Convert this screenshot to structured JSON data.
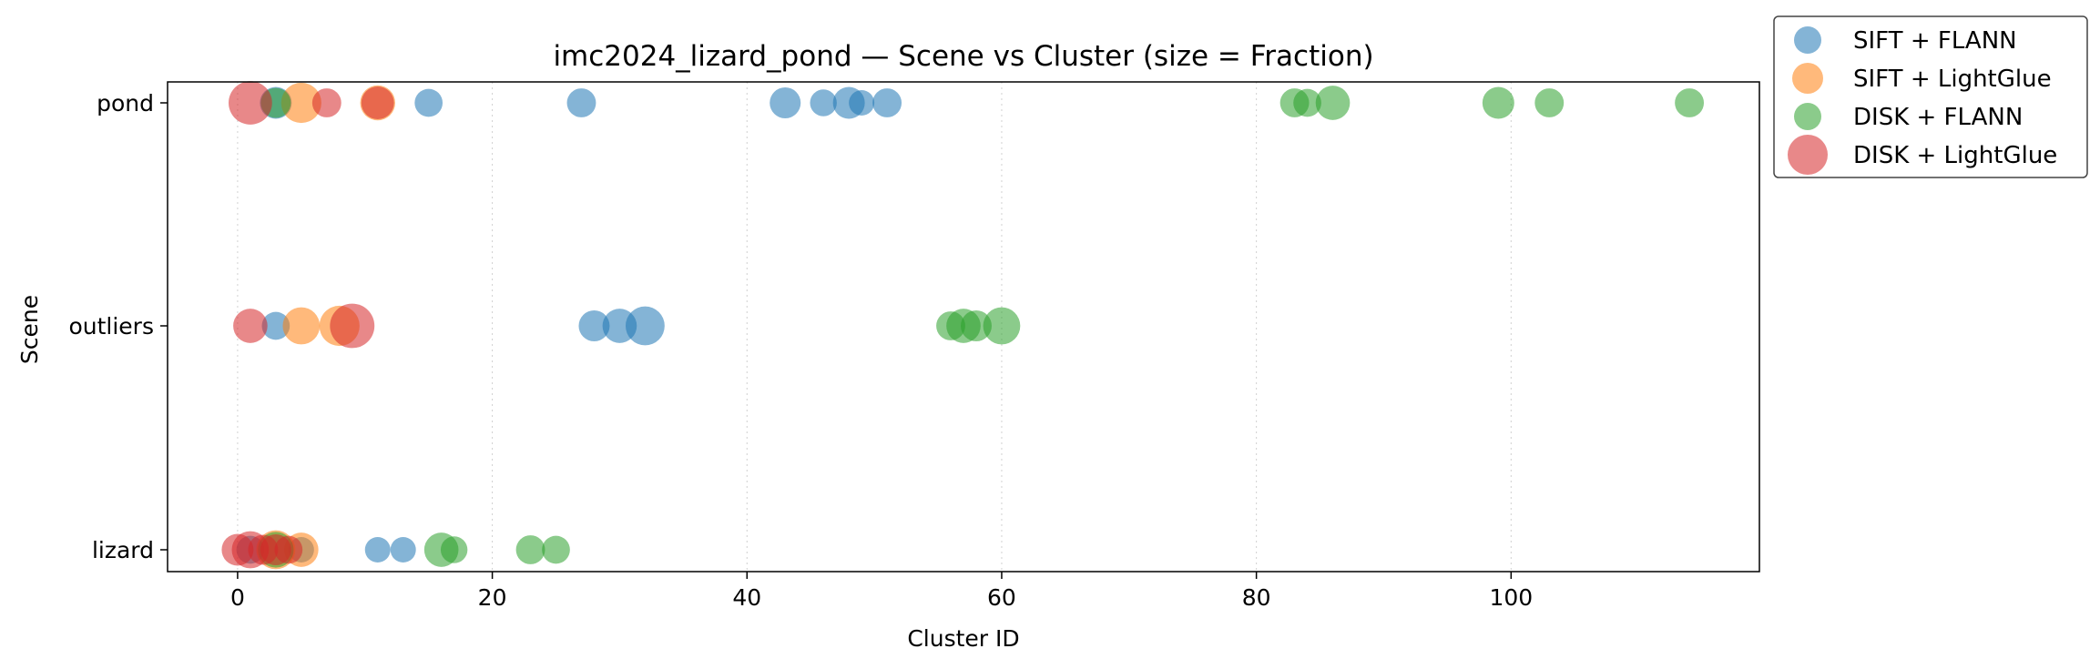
{
  "chart_data": {
    "type": "scatter",
    "title": "imc2024_lizard_pond — Scene vs Cluster (size = Fraction)",
    "xlabel": "Cluster ID",
    "ylabel": "Scene",
    "xlim": [
      -5.5,
      119.5
    ],
    "xticks": [
      0,
      20,
      40,
      60,
      80,
      100
    ],
    "y_categories": [
      "lizard",
      "outliers",
      "pond"
    ],
    "grid": "vertical dotted",
    "legend_position": "outside top-right",
    "series": [
      {
        "name": "SIFT + FLANN",
        "color": "#1f77b4",
        "points": [
          {
            "x": 3,
            "y": "pond",
            "fraction": 0.1
          },
          {
            "x": 15,
            "y": "pond",
            "fraction": 0.06
          },
          {
            "x": 27,
            "y": "pond",
            "fraction": 0.07
          },
          {
            "x": 43,
            "y": "pond",
            "fraction": 0.09
          },
          {
            "x": 46,
            "y": "pond",
            "fraction": 0.05
          },
          {
            "x": 48,
            "y": "pond",
            "fraction": 0.1
          },
          {
            "x": 49,
            "y": "pond",
            "fraction": 0.04
          },
          {
            "x": 51,
            "y": "pond",
            "fraction": 0.07
          },
          {
            "x": 3,
            "y": "outliers",
            "fraction": 0.06
          },
          {
            "x": 28,
            "y": "outliers",
            "fraction": 0.09
          },
          {
            "x": 30,
            "y": "outliers",
            "fraction": 0.13
          },
          {
            "x": 32,
            "y": "outliers",
            "fraction": 0.2
          },
          {
            "x": 1,
            "y": "lizard",
            "fraction": 0.06
          },
          {
            "x": 5,
            "y": "lizard",
            "fraction": 0.04
          },
          {
            "x": 11,
            "y": "lizard",
            "fraction": 0.04
          },
          {
            "x": 13,
            "y": "lizard",
            "fraction": 0.04
          }
        ]
      },
      {
        "name": "SIFT + LightGlue",
        "color": "#ff7f0e",
        "points": [
          {
            "x": 5,
            "y": "pond",
            "fraction": 0.22
          },
          {
            "x": 11,
            "y": "pond",
            "fraction": 0.14
          },
          {
            "x": 5,
            "y": "outliers",
            "fraction": 0.17
          },
          {
            "x": 8,
            "y": "outliers",
            "fraction": 0.22
          },
          {
            "x": 3,
            "y": "lizard",
            "fraction": 0.2
          },
          {
            "x": 5,
            "y": "lizard",
            "fraction": 0.13
          }
        ]
      },
      {
        "name": "DISK + FLANN",
        "color": "#2ca02c",
        "points": [
          {
            "x": 3,
            "y": "pond",
            "fraction": 0.08
          },
          {
            "x": 83,
            "y": "pond",
            "fraction": 0.07
          },
          {
            "x": 84,
            "y": "pond",
            "fraction": 0.06
          },
          {
            "x": 86,
            "y": "pond",
            "fraction": 0.13
          },
          {
            "x": 99,
            "y": "pond",
            "fraction": 0.1
          },
          {
            "x": 103,
            "y": "pond",
            "fraction": 0.07
          },
          {
            "x": 114,
            "y": "pond",
            "fraction": 0.07
          },
          {
            "x": 56,
            "y": "outliers",
            "fraction": 0.07
          },
          {
            "x": 57,
            "y": "outliers",
            "fraction": 0.13
          },
          {
            "x": 58,
            "y": "outliers",
            "fraction": 0.09
          },
          {
            "x": 60,
            "y": "outliers",
            "fraction": 0.17
          },
          {
            "x": 3,
            "y": "lizard",
            "fraction": 0.15
          },
          {
            "x": 16,
            "y": "lizard",
            "fraction": 0.13
          },
          {
            "x": 17,
            "y": "lizard",
            "fraction": 0.05
          },
          {
            "x": 23,
            "y": "lizard",
            "fraction": 0.07
          },
          {
            "x": 25,
            "y": "lizard",
            "fraction": 0.06
          }
        ]
      },
      {
        "name": "DISK + LightGlue",
        "color": "#d62728",
        "points": [
          {
            "x": 1,
            "y": "pond",
            "fraction": 0.28
          },
          {
            "x": 7,
            "y": "pond",
            "fraction": 0.07
          },
          {
            "x": 11,
            "y": "pond",
            "fraction": 0.11
          },
          {
            "x": 1,
            "y": "outliers",
            "fraction": 0.13
          },
          {
            "x": 9,
            "y": "outliers",
            "fraction": 0.3
          },
          {
            "x": 0,
            "y": "lizard",
            "fraction": 0.1
          },
          {
            "x": 1,
            "y": "lizard",
            "fraction": 0.17
          },
          {
            "x": 2,
            "y": "lizard",
            "fraction": 0.08
          },
          {
            "x": 3,
            "y": "lizard",
            "fraction": 0.09
          },
          {
            "x": 4,
            "y": "lizard",
            "fraction": 0.06
          }
        ]
      }
    ]
  }
}
